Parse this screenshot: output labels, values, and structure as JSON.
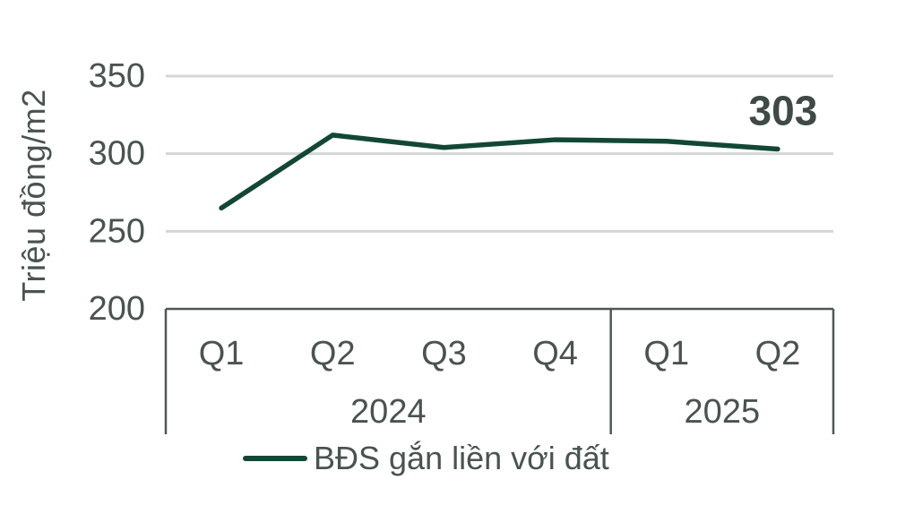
{
  "chart_data": {
    "type": "line",
    "title": "",
    "xlabel": "",
    "ylabel": "Triệu đồng/m2",
    "ylim": [
      200,
      350
    ],
    "yticks": [
      350,
      300,
      250,
      200
    ],
    "grid": true,
    "legend_position": "bottom",
    "categories": [
      "Q1",
      "Q2",
      "Q3",
      "Q4",
      "Q1",
      "Q2"
    ],
    "year_groups": [
      {
        "label": "2024",
        "span": 4
      },
      {
        "label": "2025",
        "span": 2
      }
    ],
    "series": [
      {
        "name": "BĐS gắn liền với đất",
        "values": [
          265,
          312,
          304,
          309,
          308,
          303
        ],
        "color": "#124734"
      }
    ],
    "annotation": {
      "text": "303",
      "point_index": 5
    }
  },
  "colors": {
    "text": "#49534f",
    "annotation_text": "#3f4a46",
    "gridline": "#d4d7d6",
    "axis_line": "#4d5855",
    "line": "#124734",
    "background": "#ffffff"
  }
}
